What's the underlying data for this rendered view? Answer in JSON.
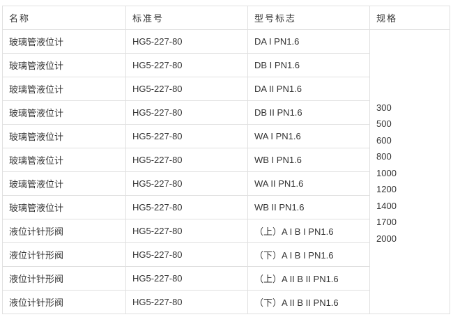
{
  "headers": [
    "名称",
    "标准号",
    "型号标志",
    "规格"
  ],
  "rows": [
    {
      "name": "玻璃管液位计",
      "standard": "HG5-227-80",
      "model": "DA I PN1.6"
    },
    {
      "name": "玻璃管液位计",
      "standard": "HG5-227-80",
      "model": "DB I PN1.6"
    },
    {
      "name": "玻璃管液位计",
      "standard": "HG5-227-80",
      "model": "DA II PN1.6"
    },
    {
      "name": "玻璃管液位计",
      "standard": "HG5-227-80",
      "model": "DB II PN1.6"
    },
    {
      "name": "玻璃管液位计",
      "standard": "HG5-227-80",
      "model": "WA I PN1.6"
    },
    {
      "name": "玻璃管液位计",
      "standard": "HG5-227-80",
      "model": "WB I PN1.6"
    },
    {
      "name": "玻璃管液位计",
      "standard": "HG5-227-80",
      "model": "WA II PN1.6"
    },
    {
      "name": "玻璃管液位计",
      "standard": "HG5-227-80",
      "model": "WB II PN1.6"
    },
    {
      "name": "液位计针形阀",
      "standard": "HG5-227-80",
      "model": "（上）A I B I PN1.6"
    },
    {
      "name": "液位计针形阀",
      "standard": "HG5-227-80",
      "model": "（下）A I B I PN1.6"
    },
    {
      "name": "液位计针形阀",
      "standard": "HG5-227-80",
      "model": "（上）A II B II PN1.6"
    },
    {
      "name": "液位计针形阀",
      "standard": "HG5-227-80",
      "model": "（下）A II B II PN1.6"
    }
  ],
  "specs": [
    "300",
    "500",
    "600",
    "800",
    "1000",
    "1200",
    "1400",
    "1700",
    "2000"
  ]
}
